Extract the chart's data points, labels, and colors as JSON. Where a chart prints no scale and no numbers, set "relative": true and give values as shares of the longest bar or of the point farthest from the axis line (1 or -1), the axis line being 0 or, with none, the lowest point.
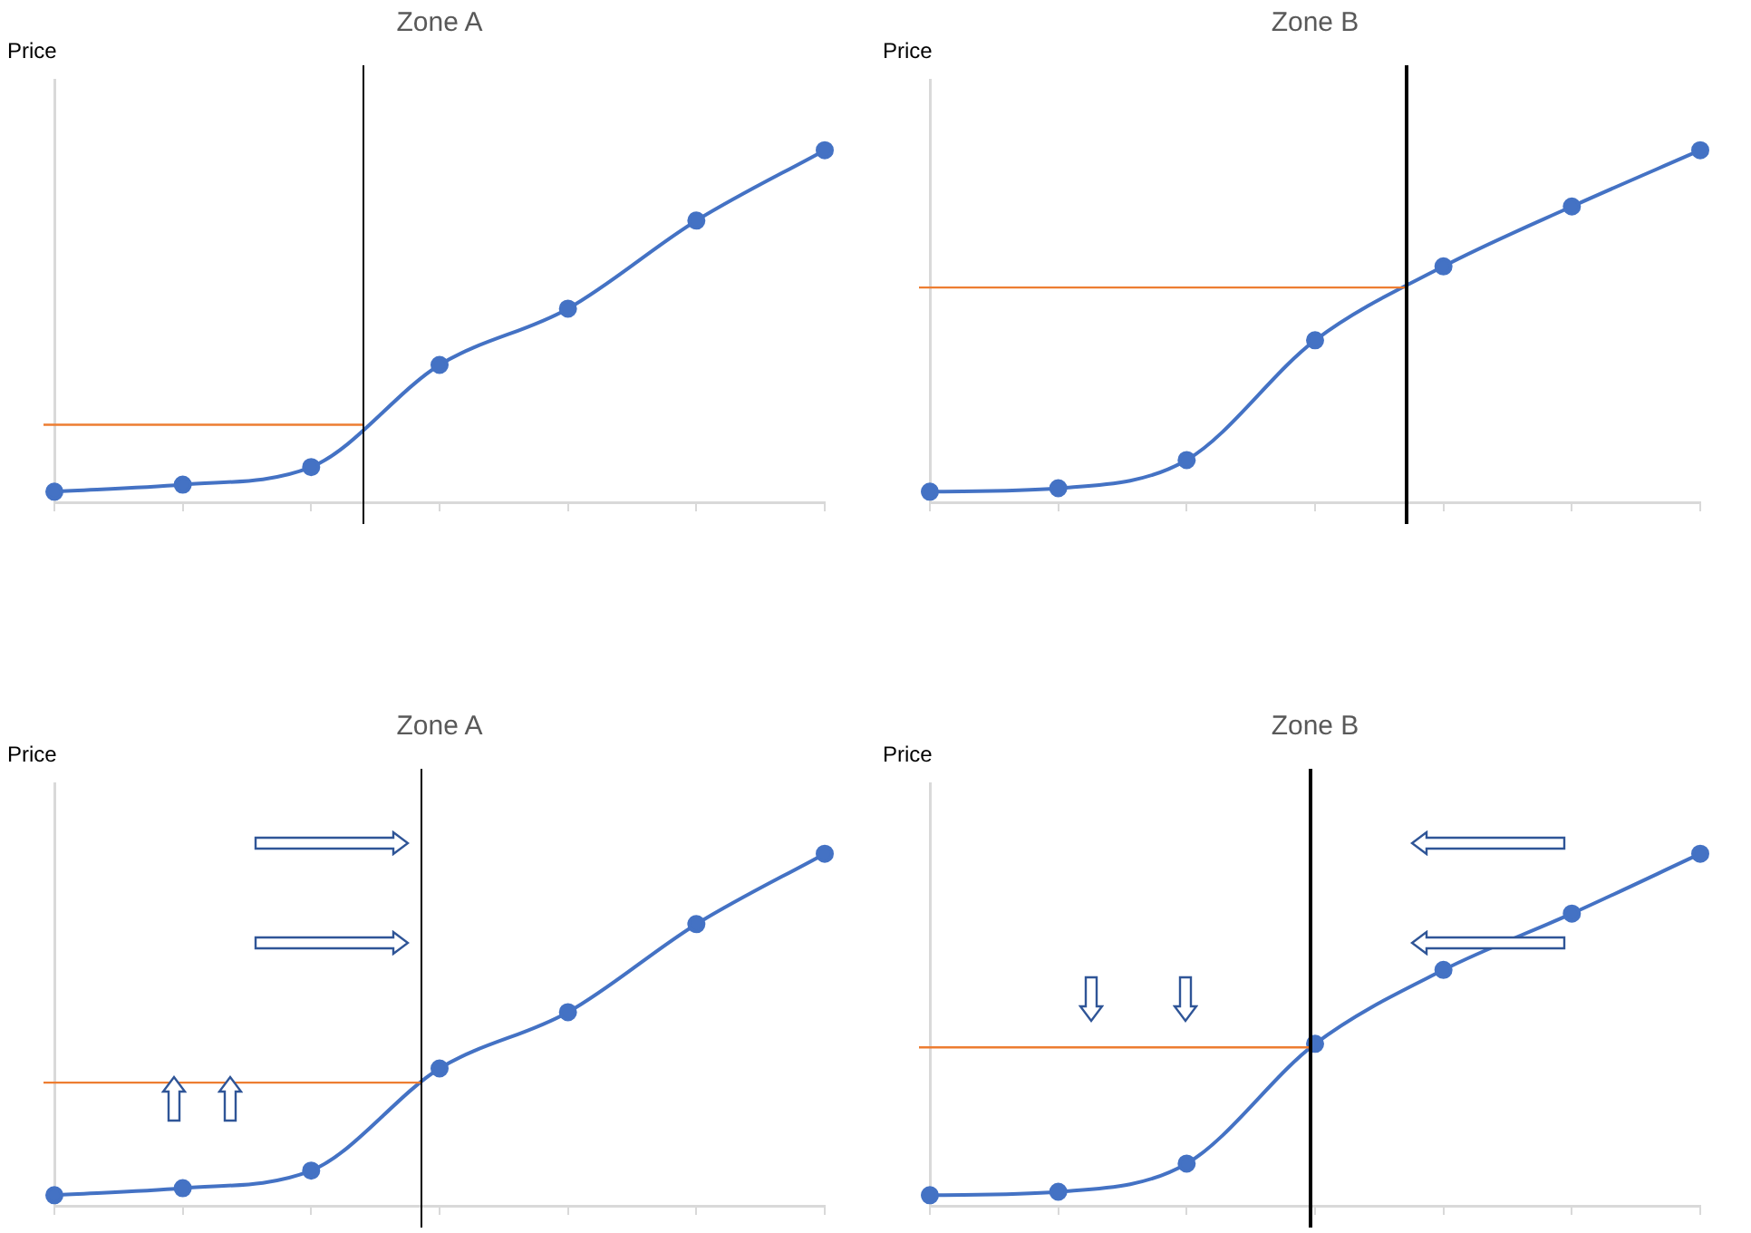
{
  "chart_data": [
    {
      "type": "line",
      "title": "Zone A",
      "ylabel": "Price",
      "relative": true,
      "tick_labels": false,
      "marker": "circle",
      "categories": [
        null,
        null,
        null,
        null,
        null,
        null,
        null
      ],
      "series": [
        {
          "color": "#4472c4",
          "values": [
            0.03,
            0.05,
            0.1,
            0.39,
            0.55,
            0.8,
            1
          ]
        }
      ],
      "ref_lines": [
        {
          "axis": "y",
          "value": 0.22,
          "color": "#ed7d31"
        }
      ]
    },
    {
      "type": "line",
      "title": "Zone B",
      "ylabel": "Price",
      "relative": true,
      "tick_labels": false,
      "marker": "circle",
      "categories": [
        null,
        null,
        null,
        null,
        null,
        null,
        null
      ],
      "series": [
        {
          "color": "#4472c4",
          "values": [
            0.03,
            0.04,
            0.12,
            0.46,
            0.67,
            0.84,
            1
          ]
        }
      ],
      "ref_lines": [
        {
          "axis": "y",
          "value": 0.61,
          "color": "#ed7d31"
        }
      ]
    },
    {
      "type": "line",
      "title": "Zone A",
      "ylabel": "Price",
      "relative": true,
      "tick_labels": false,
      "marker": "circle",
      "categories": [
        null,
        null,
        null,
        null,
        null,
        null,
        null
      ],
      "series": [
        {
          "color": "#4472c4",
          "values": [
            0.03,
            0.05,
            0.1,
            0.39,
            0.55,
            0.8,
            1
          ]
        }
      ],
      "ref_lines": [
        {
          "axis": "y",
          "value": 0.35,
          "color": "#ed7d31"
        }
      ]
    },
    {
      "type": "line",
      "title": "Zone B",
      "ylabel": "Price",
      "relative": true,
      "tick_labels": false,
      "marker": "circle",
      "categories": [
        null,
        null,
        null,
        null,
        null,
        null,
        null
      ],
      "series": [
        {
          "color": "#4472c4",
          "values": [
            0.03,
            0.04,
            0.12,
            0.46,
            0.67,
            0.83,
            1
          ]
        }
      ],
      "ref_lines": [
        {
          "axis": "y",
          "value": 0.45,
          "color": "#ed7d31"
        }
      ]
    }
  ]
}
